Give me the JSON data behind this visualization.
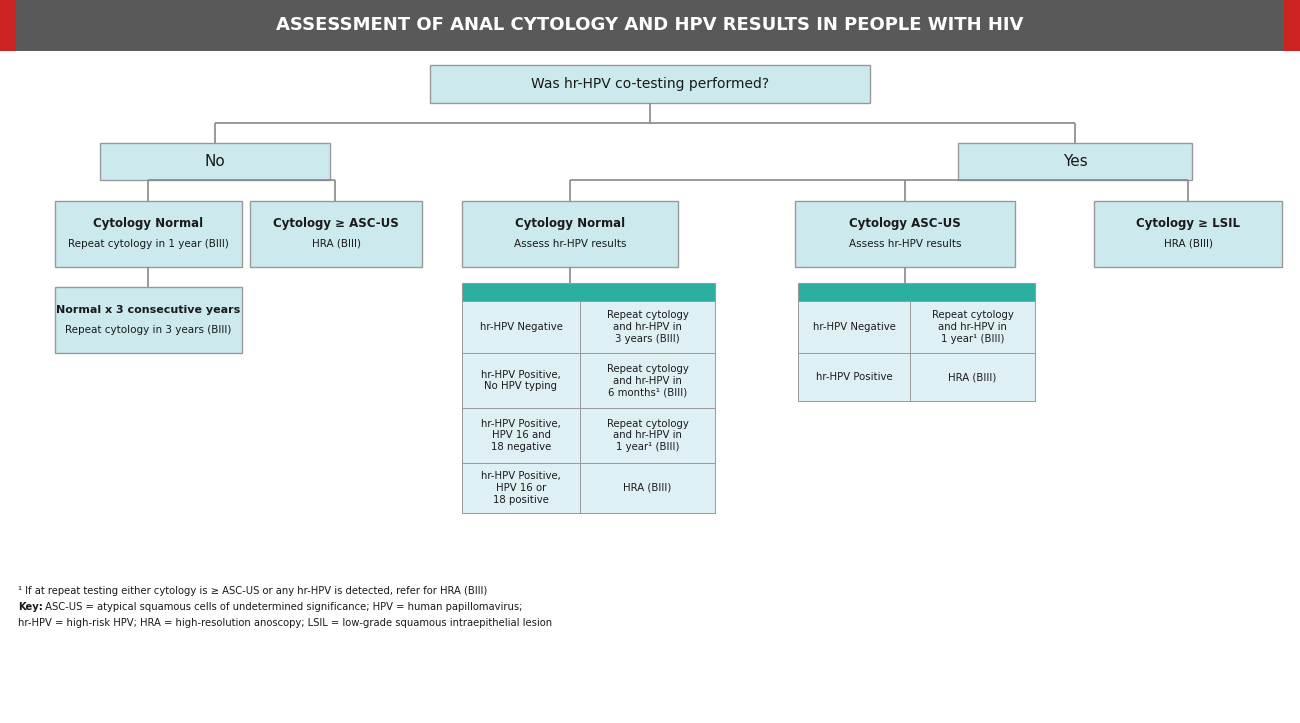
{
  "title": "ASSESSMENT OF ANAL CYTOLOGY AND HPV RESULTS IN PEOPLE WITH HIV",
  "title_bg": "#595959",
  "title_fg": "#ffffff",
  "accent_color": "#cc2222",
  "light_blue": "#cce9ee",
  "light_blue2": "#dff0f4",
  "teal_header": "#2aafa0",
  "border_color": "#999999",
  "dark_text": "#1a1a1a",
  "footnote1": "¹ If at repeat testing either cytology is ≥ ASC-US or any hr-HPV is detected, refer for HRA (BIII)",
  "footnote2_bold": "Key:",
  "footnote2_rest": " ASC-US = atypical squamous cells of undetermined significance; HPV = human papillomavirus;",
  "footnote3": "hr-HPV = high-risk HPV; HRA = high-resolution anoscopy; LSIL = low-grade squamous intraepithelial lesion"
}
